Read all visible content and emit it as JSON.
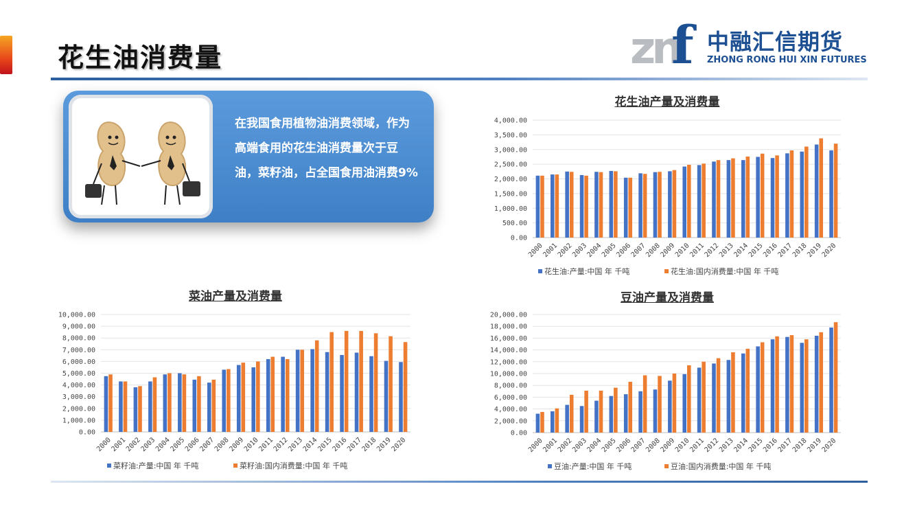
{
  "page": {
    "title": "花生油消费量",
    "callout_text": "在我国食用植物油消费领域，作为高端食用的花生油消费量次于豆油，菜籽油，占全国食用油消费9%"
  },
  "logo": {
    "mark": "znf",
    "chinese": "中融汇信期货",
    "english": "ZHONG RONG HUI XIN FUTURES"
  },
  "colors": {
    "production": "#4472C4",
    "consumption": "#ED7D31",
    "brand": "#1D4F93"
  },
  "chart_data": [
    {
      "id": "peanut",
      "type": "bar",
      "title": "花生油产量及消费量",
      "categories": [
        "2000",
        "2001",
        "2002",
        "2003",
        "2004",
        "2005",
        "2006",
        "2007",
        "2008",
        "2009",
        "2010",
        "2011",
        "2012",
        "2013",
        "2014",
        "2015",
        "2016",
        "2017",
        "2018",
        "2019",
        "2020"
      ],
      "series": [
        {
          "name": "花生油:产量:中国 年 千吨",
          "values": [
            2110,
            2150,
            2250,
            2130,
            2240,
            2270,
            2040,
            2190,
            2230,
            2260,
            2420,
            2470,
            2590,
            2640,
            2640,
            2750,
            2710,
            2870,
            2930,
            3170,
            2970
          ]
        },
        {
          "name": "花生油:国内消费量:中国 年 千吨",
          "values": [
            2110,
            2150,
            2240,
            2110,
            2230,
            2260,
            2040,
            2170,
            2240,
            2300,
            2480,
            2520,
            2640,
            2700,
            2760,
            2860,
            2800,
            2970,
            3100,
            3380,
            3200
          ]
        }
      ],
      "ylim": [
        0,
        4000
      ],
      "yticks": [
        "0.00",
        "500.00",
        "1,000.00",
        "1,500.00",
        "2,000.00",
        "2,500.00",
        "3,000.00",
        "3,500.00",
        "4,000.00"
      ],
      "grid": true,
      "legend": "bottom"
    },
    {
      "id": "rapeseed",
      "type": "bar",
      "title": "菜油产量及消费量",
      "categories": [
        "2000",
        "2001",
        "2002",
        "2003",
        "2004",
        "2005",
        "2006",
        "2007",
        "2008",
        "2009",
        "2010",
        "2011",
        "2012",
        "2013",
        "2014",
        "2015",
        "2016",
        "2017",
        "2018",
        "2019",
        "2020"
      ],
      "series": [
        {
          "name": "菜籽油:产量:中国 年 千吨",
          "values": [
            4750,
            4300,
            3800,
            4300,
            4900,
            5000,
            4450,
            4200,
            5300,
            5700,
            5500,
            6200,
            6400,
            7000,
            7050,
            6800,
            6550,
            6750,
            6450,
            6050,
            5950
          ]
        },
        {
          "name": "菜籽油:国内消费量:中国 年 千吨",
          "values": [
            4900,
            4300,
            3900,
            4650,
            5000,
            4900,
            4750,
            4450,
            5350,
            5900,
            6000,
            6400,
            6200,
            7000,
            7800,
            8500,
            8600,
            8600,
            8400,
            8150,
            7650
          ]
        }
      ],
      "ylim": [
        0,
        10000
      ],
      "yticks": [
        "0.00",
        "1,000.00",
        "2,000.00",
        "3,000.00",
        "4,000.00",
        "5,000.00",
        "6,000.00",
        "7,000.00",
        "8,000.00",
        "9,000.00",
        "10,000.00"
      ],
      "grid": true,
      "legend": "bottom"
    },
    {
      "id": "soybean",
      "type": "bar",
      "title": "豆油产量及消费量",
      "categories": [
        "2000",
        "2001",
        "2002",
        "2003",
        "2004",
        "2005",
        "2006",
        "2007",
        "2008",
        "2009",
        "2010",
        "2011",
        "2012",
        "2013",
        "2014",
        "2015",
        "2016",
        "2017",
        "2018",
        "2019",
        "2020"
      ],
      "series": [
        {
          "name": "豆油:产量:中国 年 千吨",
          "values": [
            3200,
            3600,
            4700,
            4500,
            5400,
            6200,
            6500,
            7000,
            7300,
            8800,
            9900,
            11000,
            11700,
            12300,
            13400,
            14600,
            15800,
            16200,
            15200,
            16400,
            17800
          ]
        },
        {
          "name": "豆油:国内消费量:中国 年 千吨",
          "values": [
            3500,
            4100,
            6400,
            7100,
            7100,
            7600,
            8600,
            9700,
            9600,
            10000,
            11400,
            12000,
            12600,
            13600,
            14200,
            15300,
            16300,
            16500,
            15800,
            17000,
            18700
          ]
        }
      ],
      "ylim": [
        0,
        20000
      ],
      "yticks": [
        "0.00",
        "2,000.00",
        "4,000.00",
        "6,000.00",
        "8,000.00",
        "10,000.00",
        "12,000.00",
        "14,000.00",
        "16,000.00",
        "18,000.00",
        "20,000.00"
      ],
      "grid": true,
      "legend": "bottom"
    }
  ]
}
